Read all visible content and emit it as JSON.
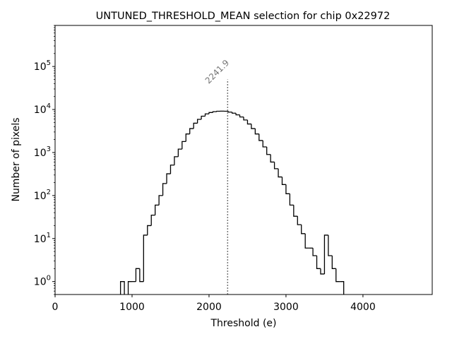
{
  "chart_data": {
    "type": "histogram",
    "title": "UNTUNED_THRESHOLD_MEAN selection for chip 0x22972",
    "xlabel": "Threshold (e)",
    "ylabel": "Number of pixels",
    "xlim": [
      0,
      4900
    ],
    "ylim": [
      0.5,
      900000
    ],
    "yscale": "log",
    "xticks": [
      0,
      1000,
      2000,
      3000,
      4000
    ],
    "xtick_labels": [
      "0",
      "1000",
      "2000",
      "3000",
      "4000"
    ],
    "yticks": [
      1,
      10,
      100,
      1000,
      10000,
      100000
    ],
    "ytick_labels": [
      "10^0",
      "10^1",
      "10^2",
      "10^3",
      "10^4",
      "10^5"
    ],
    "bin_width": 50,
    "bins_start": [
      850,
      950,
      1000,
      1050,
      1100,
      1150,
      1200,
      1250,
      1300,
      1350,
      1400,
      1450,
      1500,
      1550,
      1600,
      1650,
      1700,
      1750,
      1800,
      1850,
      1900,
      1950,
      2000,
      2050,
      2100,
      2150,
      2200,
      2250,
      2300,
      2350,
      2400,
      2450,
      2500,
      2550,
      2600,
      2650,
      2700,
      2750,
      2800,
      2850,
      2900,
      2950,
      3000,
      3050,
      3100,
      3150,
      3200,
      3250,
      3300,
      3350,
      3400,
      3450,
      3500,
      3550,
      3600,
      3650,
      3700
    ],
    "counts": [
      1,
      1,
      1,
      2,
      1,
      12,
      20,
      35,
      60,
      100,
      190,
      320,
      510,
      800,
      1200,
      1800,
      2700,
      3600,
      4800,
      5900,
      7000,
      7900,
      8500,
      8900,
      9100,
      9150,
      9100,
      8700,
      8200,
      7500,
      6700,
      5700,
      4600,
      3600,
      2700,
      1900,
      1350,
      900,
      600,
      420,
      270,
      180,
      110,
      60,
      33,
      21,
      13,
      6,
      6,
      4,
      2,
      1.5,
      12,
      4,
      2,
      1,
      1
    ],
    "vline": {
      "x": 2241.9,
      "label": "2241.9",
      "ymax": 50000,
      "style": "dotted",
      "color": "#777777"
    },
    "grid": false,
    "line_color": "#000000"
  }
}
